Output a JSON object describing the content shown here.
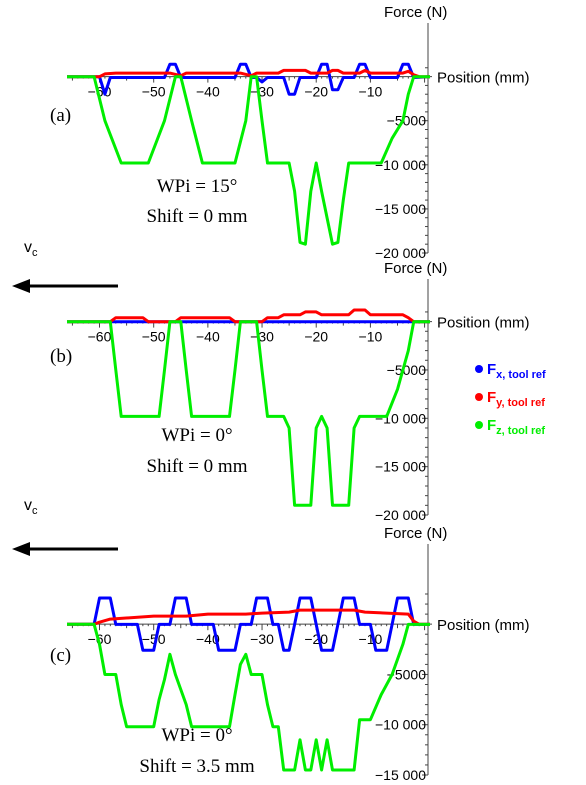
{
  "chart_data": [
    {
      "type": "line",
      "panel_label": "(a)",
      "wpi_text": "WPi = 15°",
      "shift_text": "Shift = 0 mm",
      "ylabel": "Force (N)",
      "xlabel": "Position (mm)",
      "xlim": [
        -66,
        1
      ],
      "ylim": [
        -20000,
        1200
      ],
      "x_ticks": [
        "-60",
        "-50",
        "-40",
        "-30",
        "-20",
        "-10"
      ],
      "y_ticks": [
        "-5000",
        "-10 000",
        "-15 000",
        "-20 000"
      ],
      "y_tick_values": [
        -5000,
        -10000,
        -15000,
        -20000
      ],
      "series": [
        {
          "name": "Fx",
          "color": "#0000ff",
          "points": [
            [
              -66,
              -10
            ],
            [
              -60,
              -10
            ],
            [
              -59,
              -2000
            ],
            [
              -58,
              -100
            ],
            [
              -48,
              -100
            ],
            [
              -47,
              1400
            ],
            [
              -46,
              1400
            ],
            [
              -45,
              -100
            ],
            [
              -35,
              -100
            ],
            [
              -34,
              1400
            ],
            [
              -33,
              1400
            ],
            [
              -32,
              -100
            ],
            [
              -31,
              -100
            ],
            [
              -30,
              -600
            ],
            [
              -29,
              -100
            ],
            [
              -26,
              -100
            ],
            [
              -25,
              -2000
            ],
            [
              -24,
              -2000
            ],
            [
              -23,
              -100
            ],
            [
              -20,
              -100
            ],
            [
              -19,
              1400
            ],
            [
              -18,
              1400
            ],
            [
              -17,
              -1500
            ],
            [
              -16,
              -1500
            ],
            [
              -15,
              -100
            ],
            [
              -13,
              -100
            ],
            [
              -12,
              1400
            ],
            [
              -11,
              1400
            ],
            [
              -10,
              -100
            ],
            [
              -5,
              -100
            ],
            [
              -4,
              1400
            ],
            [
              -3,
              1400
            ],
            [
              -2,
              -100
            ],
            [
              1,
              -10
            ]
          ]
        },
        {
          "name": "Fy",
          "color": "#ff0000",
          "points": [
            [
              -66,
              -10
            ],
            [
              -60,
              -10
            ],
            [
              -59,
              300
            ],
            [
              -57,
              400
            ],
            [
              -47,
              400
            ],
            [
              -45,
              100
            ],
            [
              -44,
              400
            ],
            [
              -34,
              400
            ],
            [
              -32,
              100
            ],
            [
              -31,
              400
            ],
            [
              -27,
              400
            ],
            [
              -26,
              700
            ],
            [
              -22,
              700
            ],
            [
              -21,
              400
            ],
            [
              -18,
              400
            ],
            [
              -17,
              700
            ],
            [
              -16,
              700
            ],
            [
              -15,
              400
            ],
            [
              -12,
              400
            ],
            [
              -11,
              700
            ],
            [
              -10,
              400
            ],
            [
              -4,
              400
            ],
            [
              -3,
              600
            ],
            [
              -2,
              200
            ],
            [
              -1,
              -10
            ],
            [
              1,
              -10
            ]
          ]
        },
        {
          "name": "Fz",
          "color": "#00ee00",
          "points": [
            [
              -66,
              -10
            ],
            [
              -61,
              -10
            ],
            [
              -59,
              -5000
            ],
            [
              -56,
              -9800
            ],
            [
              -51,
              -9800
            ],
            [
              -48,
              -5000
            ],
            [
              -46,
              -20
            ],
            [
              -45,
              -20
            ],
            [
              -43,
              -5000
            ],
            [
              -41,
              -9800
            ],
            [
              -35,
              -9800
            ],
            [
              -33,
              -5000
            ],
            [
              -32,
              -20
            ],
            [
              -31,
              -20
            ],
            [
              -30,
              -5000
            ],
            [
              -29,
              -9800
            ],
            [
              -25,
              -9800
            ],
            [
              -24,
              -13000
            ],
            [
              -23,
              -18800
            ],
            [
              -22,
              -19000
            ],
            [
              -21,
              -13000
            ],
            [
              -20,
              -9800
            ],
            [
              -19,
              -13000
            ],
            [
              -17,
              -19000
            ],
            [
              -16,
              -18800
            ],
            [
              -15,
              -14000
            ],
            [
              -14,
              -9800
            ],
            [
              -8,
              -9800
            ],
            [
              -6,
              -7000
            ],
            [
              -4,
              -5000
            ],
            [
              -3,
              -2000
            ],
            [
              -2,
              -20
            ],
            [
              1,
              -20
            ]
          ]
        }
      ]
    },
    {
      "type": "line",
      "panel_label": "(b)",
      "wpi_text": "WPi = 0°",
      "shift_text": "Shift = 0 mm",
      "ylabel": "Force (N)",
      "xlabel": "Position (mm)",
      "xlim": [
        -66,
        1
      ],
      "ylim": [
        -20000,
        1200
      ],
      "x_ticks": [
        "-60",
        "-50",
        "-40",
        "-30",
        "-20",
        "-10"
      ],
      "y_ticks": [
        "-5000",
        "-10 000",
        "-15 000",
        "-20 000"
      ],
      "y_tick_values": [
        -5000,
        -10000,
        -15000,
        -20000
      ],
      "series": [
        {
          "name": "Fx",
          "color": "#0000ff",
          "points": [
            [
              -66,
              -10
            ],
            [
              1,
              -10
            ]
          ]
        },
        {
          "name": "Fy",
          "color": "#ff0000",
          "points": [
            [
              -66,
              -10
            ],
            [
              -58,
              -10
            ],
            [
              -57,
              400
            ],
            [
              -52,
              400
            ],
            [
              -51,
              -10
            ],
            [
              -46,
              -10
            ],
            [
              -45,
              400
            ],
            [
              -36,
              400
            ],
            [
              -35,
              -10
            ],
            [
              -30,
              -10
            ],
            [
              -29,
              400
            ],
            [
              -27,
              400
            ],
            [
              -26,
              700
            ],
            [
              -23,
              700
            ],
            [
              -22,
              1000
            ],
            [
              -20,
              1000
            ],
            [
              -19,
              700
            ],
            [
              -14,
              700
            ],
            [
              -13,
              1200
            ],
            [
              -11,
              1200
            ],
            [
              -10,
              700
            ],
            [
              -4,
              700
            ],
            [
              -3,
              400
            ],
            [
              -2,
              -10
            ],
            [
              1,
              -10
            ]
          ]
        },
        {
          "name": "Fz",
          "color": "#00ee00",
          "points": [
            [
              -66,
              -10
            ],
            [
              -58,
              -10
            ],
            [
              -57,
              -5000
            ],
            [
              -56,
              -9800
            ],
            [
              -49,
              -9800
            ],
            [
              -48,
              -5000
            ],
            [
              -47,
              -20
            ],
            [
              -45,
              -20
            ],
            [
              -44,
              -5000
            ],
            [
              -43,
              -9800
            ],
            [
              -36,
              -9800
            ],
            [
              -35,
              -5000
            ],
            [
              -34,
              -20
            ],
            [
              -31,
              -20
            ],
            [
              -30,
              -5000
            ],
            [
              -29,
              -9800
            ],
            [
              -26,
              -9800
            ],
            [
              -25,
              -11000
            ],
            [
              -24,
              -19000
            ],
            [
              -21,
              -19000
            ],
            [
              -20,
              -11000
            ],
            [
              -19,
              -9800
            ],
            [
              -18,
              -11000
            ],
            [
              -17,
              -19000
            ],
            [
              -14,
              -19000
            ],
            [
              -13,
              -11000
            ],
            [
              -12,
              -9800
            ],
            [
              -7,
              -9800
            ],
            [
              -5,
              -7000
            ],
            [
              -3,
              -3000
            ],
            [
              -2,
              -20
            ],
            [
              1,
              -20
            ]
          ]
        }
      ]
    },
    {
      "type": "line",
      "panel_label": "(c)",
      "wpi_text": "WPi = 0°",
      "shift_text": "Shift = 3.5 mm",
      "ylabel": "Force (N)",
      "xlabel": "Position (mm)",
      "xlim": [
        -66,
        1
      ],
      "ylim": [
        -15000,
        3200
      ],
      "x_ticks": [
        "-60",
        "-50",
        "-40",
        "-30",
        "-20",
        "-10"
      ],
      "y_ticks": [
        "-5000",
        "-10 000",
        "-15 000"
      ],
      "y_tick_values": [
        -5000,
        -10000,
        -15000
      ],
      "series": [
        {
          "name": "Fx",
          "color": "#0000ff",
          "points": [
            [
              -66,
              -10
            ],
            [
              -61,
              -10
            ],
            [
              -60,
              2600
            ],
            [
              -58,
              2600
            ],
            [
              -57,
              -20
            ],
            [
              -53,
              -20
            ],
            [
              -52,
              -2600
            ],
            [
              -50,
              -2600
            ],
            [
              -49,
              -20
            ],
            [
              -47,
              -20
            ],
            [
              -46,
              2600
            ],
            [
              -44,
              2600
            ],
            [
              -43,
              -20
            ],
            [
              -39,
              -20
            ],
            [
              -38,
              -2600
            ],
            [
              -35,
              -2600
            ],
            [
              -34,
              -20
            ],
            [
              -32,
              -20
            ],
            [
              -31,
              2600
            ],
            [
              -29,
              2600
            ],
            [
              -28,
              -20
            ],
            [
              -27,
              -20
            ],
            [
              -26,
              -2600
            ],
            [
              -25,
              -2600
            ],
            [
              -24,
              -20
            ],
            [
              -23,
              2600
            ],
            [
              -21,
              2600
            ],
            [
              -20,
              -20
            ],
            [
              -19,
              -2600
            ],
            [
              -17,
              -2600
            ],
            [
              -16,
              -20
            ],
            [
              -15,
              2600
            ],
            [
              -13,
              2600
            ],
            [
              -12,
              -20
            ],
            [
              -10,
              -20
            ],
            [
              -9,
              -2600
            ],
            [
              -7,
              -2600
            ],
            [
              -6,
              -20
            ],
            [
              -5,
              2600
            ],
            [
              -3,
              2600
            ],
            [
              -2,
              -20
            ],
            [
              1,
              -20
            ]
          ]
        },
        {
          "name": "Fy",
          "color": "#ff0000",
          "points": [
            [
              -66,
              -10
            ],
            [
              -61,
              -10
            ],
            [
              -60,
              200
            ],
            [
              -58,
              500
            ],
            [
              -50,
              800
            ],
            [
              -44,
              800
            ],
            [
              -40,
              1000
            ],
            [
              -33,
              1000
            ],
            [
              -30,
              1100
            ],
            [
              -25,
              1200
            ],
            [
              -23,
              1400
            ],
            [
              -13,
              1400
            ],
            [
              -11,
              1200
            ],
            [
              -3,
              1000
            ],
            [
              -2,
              300
            ],
            [
              -1,
              -10
            ],
            [
              1,
              -10
            ]
          ]
        },
        {
          "name": "Fz",
          "color": "#00ee00",
          "points": [
            [
              -66,
              -10
            ],
            [
              -61,
              -10
            ],
            [
              -60,
              -2000
            ],
            [
              -59,
              -5000
            ],
            [
              -57,
              -5000
            ],
            [
              -56,
              -8000
            ],
            [
              -55,
              -10200
            ],
            [
              -50,
              -10200
            ],
            [
              -49,
              -7500
            ],
            [
              -48,
              -5500
            ],
            [
              -47,
              -3000
            ],
            [
              -46,
              -5000
            ],
            [
              -44,
              -8000
            ],
            [
              -43,
              -10200
            ],
            [
              -36,
              -10200
            ],
            [
              -35,
              -7000
            ],
            [
              -34,
              -4000
            ],
            [
              -33,
              -3000
            ],
            [
              -32,
              -5000
            ],
            [
              -30,
              -5000
            ],
            [
              -29,
              -8000
            ],
            [
              -28,
              -10200
            ],
            [
              -27,
              -10200
            ],
            [
              -26,
              -14500
            ],
            [
              -24,
              -14500
            ],
            [
              -23,
              -11500
            ],
            [
              -22,
              -14500
            ],
            [
              -21,
              -14500
            ],
            [
              -20,
              -11500
            ],
            [
              -19,
              -14500
            ],
            [
              -18,
              -11500
            ],
            [
              -17,
              -14500
            ],
            [
              -13,
              -14500
            ],
            [
              -12,
              -9500
            ],
            [
              -10,
              -9500
            ],
            [
              -8,
              -7000
            ],
            [
              -6,
              -5000
            ],
            [
              -4,
              -2000
            ],
            [
              -3,
              -20
            ],
            [
              1,
              -20
            ]
          ]
        }
      ]
    }
  ],
  "cutting_velocity_label": {
    "main": "v",
    "sub": "c"
  },
  "legend": [
    {
      "main": "F",
      "sub": "x, tool ref",
      "color": "#0000ff"
    },
    {
      "main": "F",
      "sub": "y, tool ref",
      "color": "#ff0000"
    },
    {
      "main": "F",
      "sub": "z, tool ref",
      "color": "#00ee00"
    }
  ]
}
